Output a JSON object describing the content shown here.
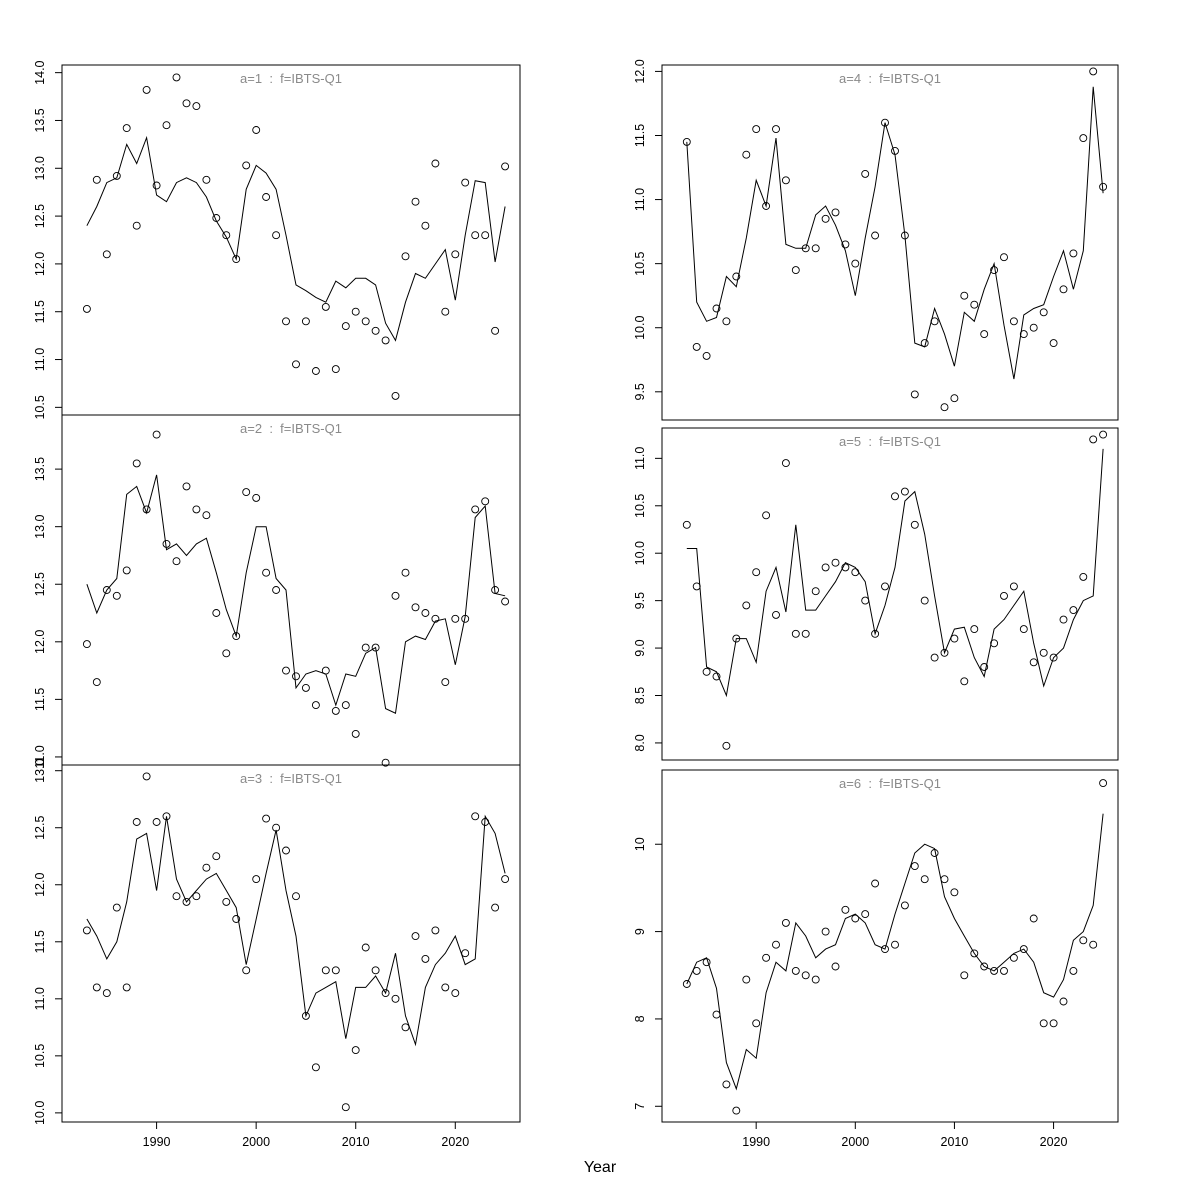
{
  "figure": {
    "xlabel": "Year",
    "title_color": "#8a8a8a",
    "axis_color": "#000000",
    "line_color": "#000000",
    "point_color": "#000000",
    "background": "#ffffff"
  },
  "chart_data": {
    "type": "scatter",
    "description": "Six-panel lattice of observed points (open circles) with fitted line per age/fleet, survey index IBTS-Q1, ages 1-6, years 1983-2025",
    "xlabel": "Year",
    "xlim": [
      1980.5,
      2026.5
    ],
    "xticks": [
      1990,
      2000,
      2010,
      2020
    ],
    "xtick_labels": [
      "1990",
      "2000",
      "2010",
      "2020"
    ],
    "x": [
      1983,
      1984,
      1985,
      1986,
      1987,
      1988,
      1989,
      1990,
      1991,
      1992,
      1993,
      1994,
      1995,
      1996,
      1997,
      1998,
      1999,
      2000,
      2001,
      2002,
      2003,
      2004,
      2005,
      2006,
      2007,
      2008,
      2009,
      2010,
      2011,
      2012,
      2013,
      2014,
      2015,
      2016,
      2017,
      2018,
      2019,
      2020,
      2021,
      2022,
      2023,
      2024,
      2025
    ],
    "panels": [
      {
        "title": "a=1  :  f=IBTS-Q1",
        "ylim": [
          10.42,
          14.08
        ],
        "yticks": [
          10.5,
          11.0,
          11.5,
          12.0,
          12.5,
          13.0,
          13.5,
          14.0
        ],
        "ytick_labels": [
          "10.5",
          "11.0",
          "11.5",
          "12.0",
          "12.5",
          "13.0",
          "13.5",
          "14.0"
        ],
        "points": [
          11.53,
          12.88,
          12.1,
          12.92,
          13.42,
          12.4,
          13.82,
          12.82,
          13.45,
          13.95,
          13.68,
          13.65,
          12.88,
          12.48,
          12.3,
          12.05,
          13.03,
          13.4,
          12.7,
          12.3,
          11.4,
          10.95,
          11.4,
          10.88,
          11.55,
          10.9,
          11.35,
          11.5,
          11.4,
          11.3,
          11.2,
          10.62,
          12.08,
          12.65,
          12.4,
          13.05,
          11.5,
          12.1,
          12.85,
          12.3,
          12.3,
          11.3,
          13.02
        ],
        "line": [
          12.4,
          12.6,
          12.85,
          12.9,
          13.25,
          13.05,
          13.32,
          12.72,
          12.65,
          12.85,
          12.9,
          12.85,
          12.7,
          12.45,
          12.28,
          12.05,
          12.78,
          13.03,
          12.95,
          12.78,
          12.3,
          11.78,
          11.72,
          11.65,
          11.6,
          11.82,
          11.75,
          11.85,
          11.85,
          11.78,
          11.38,
          11.2,
          11.6,
          11.9,
          11.85,
          12.0,
          12.15,
          11.62,
          12.3,
          12.87,
          12.85,
          12.02,
          12.6
        ]
      },
      {
        "title": "a=2  :  f=IBTS-Q1",
        "ylim": [
          10.93,
          13.97
        ],
        "yticks": [
          11.0,
          11.5,
          12.0,
          12.5,
          13.0,
          13.5
        ],
        "ytick_labels": [
          "11.0",
          "11.5",
          "12.0",
          "12.5",
          "13.0",
          "13.5"
        ],
        "points": [
          11.98,
          11.65,
          12.45,
          12.4,
          12.62,
          13.55,
          13.15,
          13.8,
          12.85,
          12.7,
          13.35,
          13.15,
          13.1,
          12.25,
          11.9,
          12.05,
          13.3,
          13.25,
          12.6,
          12.45,
          11.75,
          11.7,
          11.6,
          11.45,
          11.75,
          11.4,
          11.45,
          11.2,
          11.95,
          11.95,
          10.95,
          12.4,
          12.6,
          12.3,
          12.25,
          12.2,
          11.65,
          12.2,
          12.2,
          13.15,
          13.22,
          12.45,
          12.35
        ],
        "line": [
          12.5,
          12.25,
          12.45,
          12.55,
          13.28,
          13.35,
          13.12,
          13.45,
          12.8,
          12.85,
          12.75,
          12.85,
          12.9,
          12.6,
          12.28,
          12.05,
          12.6,
          13.0,
          13.0,
          12.55,
          12.45,
          11.6,
          11.72,
          11.75,
          11.72,
          11.45,
          11.72,
          11.7,
          11.9,
          11.95,
          11.42,
          11.38,
          12.0,
          12.05,
          12.02,
          12.18,
          12.2,
          11.8,
          12.22,
          13.08,
          13.18,
          12.42,
          12.4
        ]
      },
      {
        "title": "a=3  :  f=IBTS-Q1",
        "ylim": [
          9.92,
          13.05
        ],
        "yticks": [
          10.0,
          10.5,
          11.0,
          11.5,
          12.0,
          12.5,
          13.0
        ],
        "ytick_labels": [
          "10.0",
          "10.5",
          "11.0",
          "11.5",
          "12.0",
          "12.5",
          "13.0"
        ],
        "points": [
          11.6,
          11.1,
          11.05,
          11.8,
          11.1,
          12.55,
          12.95,
          12.55,
          12.6,
          11.9,
          11.85,
          11.9,
          12.15,
          12.25,
          11.85,
          11.7,
          11.25,
          12.05,
          12.58,
          12.5,
          12.3,
          11.9,
          10.85,
          10.4,
          11.25,
          11.25,
          10.05,
          10.55,
          11.45,
          11.25,
          11.05,
          11.0,
          10.75,
          11.55,
          11.35,
          11.6,
          11.1,
          11.05,
          11.4,
          12.6,
          12.55,
          11.8,
          12.05
        ],
        "line": [
          11.7,
          11.55,
          11.35,
          11.5,
          11.85,
          12.4,
          12.45,
          11.95,
          12.6,
          12.05,
          11.85,
          11.95,
          12.05,
          12.1,
          11.95,
          11.8,
          11.3,
          11.7,
          12.1,
          12.48,
          11.95,
          11.55,
          10.85,
          11.05,
          11.1,
          11.15,
          10.65,
          11.1,
          11.1,
          11.2,
          11.05,
          11.4,
          10.85,
          10.6,
          11.1,
          11.3,
          11.4,
          11.55,
          11.3,
          11.35,
          12.6,
          12.45,
          12.1
        ]
      },
      {
        "title": "a=4  :  f=IBTS-Q1",
        "ylim": [
          9.28,
          12.05
        ],
        "yticks": [
          9.5,
          10.0,
          10.5,
          11.0,
          11.5,
          12.0
        ],
        "ytick_labels": [
          "9.5",
          "10.0",
          "10.5",
          "11.0",
          "11.5",
          "12.0"
        ],
        "points": [
          11.45,
          9.85,
          9.78,
          10.15,
          10.05,
          10.4,
          11.35,
          11.55,
          10.95,
          11.55,
          11.15,
          10.45,
          10.62,
          10.62,
          10.85,
          10.9,
          10.65,
          10.5,
          11.2,
          10.72,
          11.6,
          11.38,
          10.72,
          9.48,
          9.88,
          10.05,
          9.38,
          9.45,
          10.25,
          10.18,
          9.95,
          10.45,
          10.55,
          10.05,
          9.95,
          10.0,
          10.12,
          9.88,
          10.3,
          10.58,
          11.48,
          12.0,
          11.1
        ],
        "line": [
          11.45,
          10.2,
          10.05,
          10.08,
          10.4,
          10.32,
          10.7,
          11.15,
          10.95,
          11.48,
          10.65,
          10.62,
          10.62,
          10.88,
          10.95,
          10.8,
          10.6,
          10.25,
          10.7,
          11.1,
          11.6,
          11.35,
          10.72,
          9.88,
          9.85,
          10.15,
          9.95,
          9.7,
          10.12,
          10.05,
          10.3,
          10.5,
          10.02,
          9.6,
          10.1,
          10.15,
          10.18,
          10.4,
          10.6,
          10.3,
          10.6,
          11.88,
          11.05
        ]
      },
      {
        "title": "a=5  :  f=IBTS-Q1",
        "ylim": [
          7.82,
          11.32
        ],
        "yticks": [
          8.0,
          8.5,
          9.0,
          9.5,
          10.0,
          10.5,
          11.0
        ],
        "ytick_labels": [
          "8.0",
          "8.5",
          "9.0",
          "9.5",
          "10.0",
          "10.5",
          "11.0"
        ],
        "points": [
          10.3,
          9.65,
          8.75,
          8.7,
          7.97,
          9.1,
          9.45,
          9.8,
          10.4,
          9.35,
          10.95,
          9.15,
          9.15,
          9.6,
          9.85,
          9.9,
          9.85,
          9.8,
          9.5,
          9.15,
          9.65,
          10.6,
          10.65,
          10.3,
          9.5,
          8.9,
          8.95,
          9.1,
          8.65,
          9.2,
          8.8,
          9.05,
          9.55,
          9.65,
          9.2,
          8.85,
          8.95,
          8.9,
          9.3,
          9.4,
          9.75,
          11.2,
          11.25
        ],
        "line": [
          10.05,
          10.05,
          8.8,
          8.75,
          8.5,
          9.1,
          9.1,
          8.85,
          9.6,
          9.85,
          9.38,
          10.3,
          9.4,
          9.4,
          9.55,
          9.7,
          9.9,
          9.85,
          9.7,
          9.15,
          9.45,
          9.85,
          10.55,
          10.65,
          10.2,
          9.55,
          8.95,
          9.2,
          9.22,
          8.9,
          8.7,
          9.2,
          9.3,
          9.45,
          9.6,
          9.05,
          8.6,
          8.9,
          9.0,
          9.3,
          9.5,
          9.55,
          11.1
        ]
      },
      {
        "title": "a=6  :  f=IBTS-Q1",
        "ylim": [
          6.82,
          10.85
        ],
        "yticks": [
          7,
          8,
          9,
          10
        ],
        "ytick_labels": [
          "7",
          "8",
          "9",
          "10"
        ],
        "points": [
          8.4,
          8.55,
          8.65,
          8.05,
          7.25,
          6.95,
          8.45,
          7.95,
          8.7,
          8.85,
          9.1,
          8.55,
          8.5,
          8.45,
          9.0,
          8.6,
          9.25,
          9.15,
          9.2,
          9.55,
          8.8,
          8.85,
          9.3,
          9.75,
          9.6,
          9.9,
          9.6,
          9.45,
          8.5,
          8.75,
          8.6,
          8.55,
          8.55,
          8.7,
          8.8,
          9.15,
          7.95,
          7.95,
          8.2,
          8.55,
          8.9,
          8.85,
          10.7
        ],
        "line": [
          8.4,
          8.65,
          8.7,
          8.35,
          7.5,
          7.2,
          7.65,
          7.55,
          8.3,
          8.65,
          8.55,
          9.1,
          8.95,
          8.7,
          8.8,
          8.85,
          9.15,
          9.2,
          9.1,
          8.85,
          8.8,
          9.2,
          9.55,
          9.9,
          10.0,
          9.95,
          9.4,
          9.15,
          8.95,
          8.75,
          8.6,
          8.55,
          8.65,
          8.75,
          8.8,
          8.65,
          8.3,
          8.25,
          8.45,
          8.9,
          9.0,
          9.3,
          10.35
        ]
      }
    ]
  }
}
